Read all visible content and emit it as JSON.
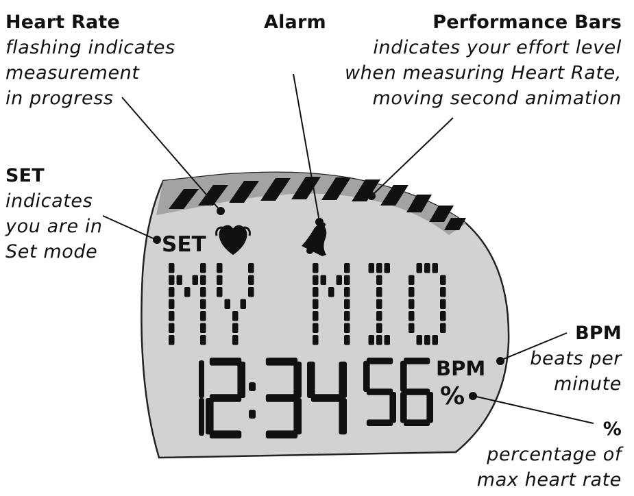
{
  "callouts": {
    "heart_rate": {
      "title": "Heart Rate",
      "lines": [
        "flashing indicates",
        "measurement",
        "in progress"
      ]
    },
    "alarm": {
      "title": "Alarm"
    },
    "performance_bars": {
      "title": "Performance Bars",
      "lines": [
        "indicates your effort level",
        "when measuring Heart Rate,",
        "moving second animation"
      ]
    },
    "set": {
      "title": "SET",
      "lines": [
        "indicates",
        "you are in",
        "Set mode"
      ]
    },
    "bpm": {
      "title": "BPM",
      "lines": [
        "beats per",
        "minute"
      ]
    },
    "percent": {
      "title": "%",
      "lines": [
        "percentage of",
        "max heart rate"
      ]
    }
  },
  "display": {
    "set_indicator": "SET",
    "message": "MY MIO",
    "time": "12:34",
    "seconds": "56",
    "bpm_unit": "BPM",
    "percent_unit": "%"
  },
  "colors": {
    "lcd_background": "#d2d2d2",
    "lcd_band": "#a3a3a3",
    "segment": "#111111"
  }
}
